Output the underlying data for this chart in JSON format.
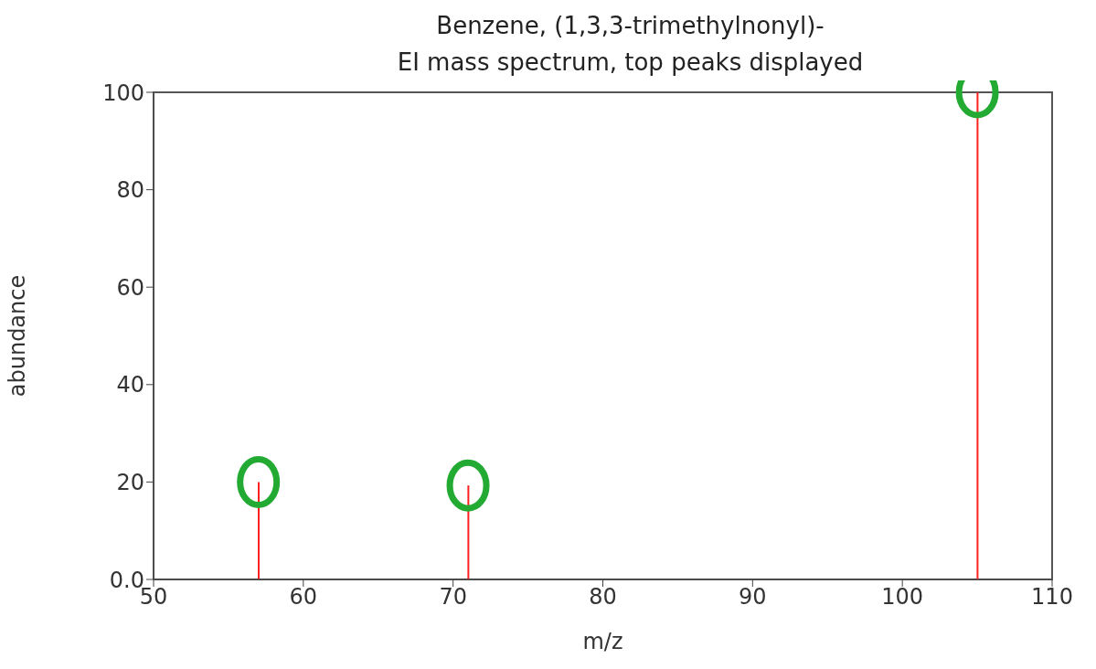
{
  "chart_data": {
    "type": "bar",
    "title": "Benzene, (1,3,3-trimethylnonyl)-",
    "subtitle": "EI mass spectrum, top peaks displayed",
    "xlabel": "m/z",
    "ylabel": "abundance",
    "x": [
      57,
      71,
      105
    ],
    "values": [
      20,
      19.3,
      100
    ],
    "color": "#ff2020",
    "xlim": [
      50,
      110
    ],
    "xticks": [
      50,
      60,
      70,
      80,
      90,
      100,
      110
    ],
    "ylim": [
      0,
      100
    ],
    "yticks": [
      {
        "value": 0,
        "label": "0.0"
      },
      20,
      40,
      60,
      80,
      100
    ],
    "grid": false,
    "legend": false
  }
}
